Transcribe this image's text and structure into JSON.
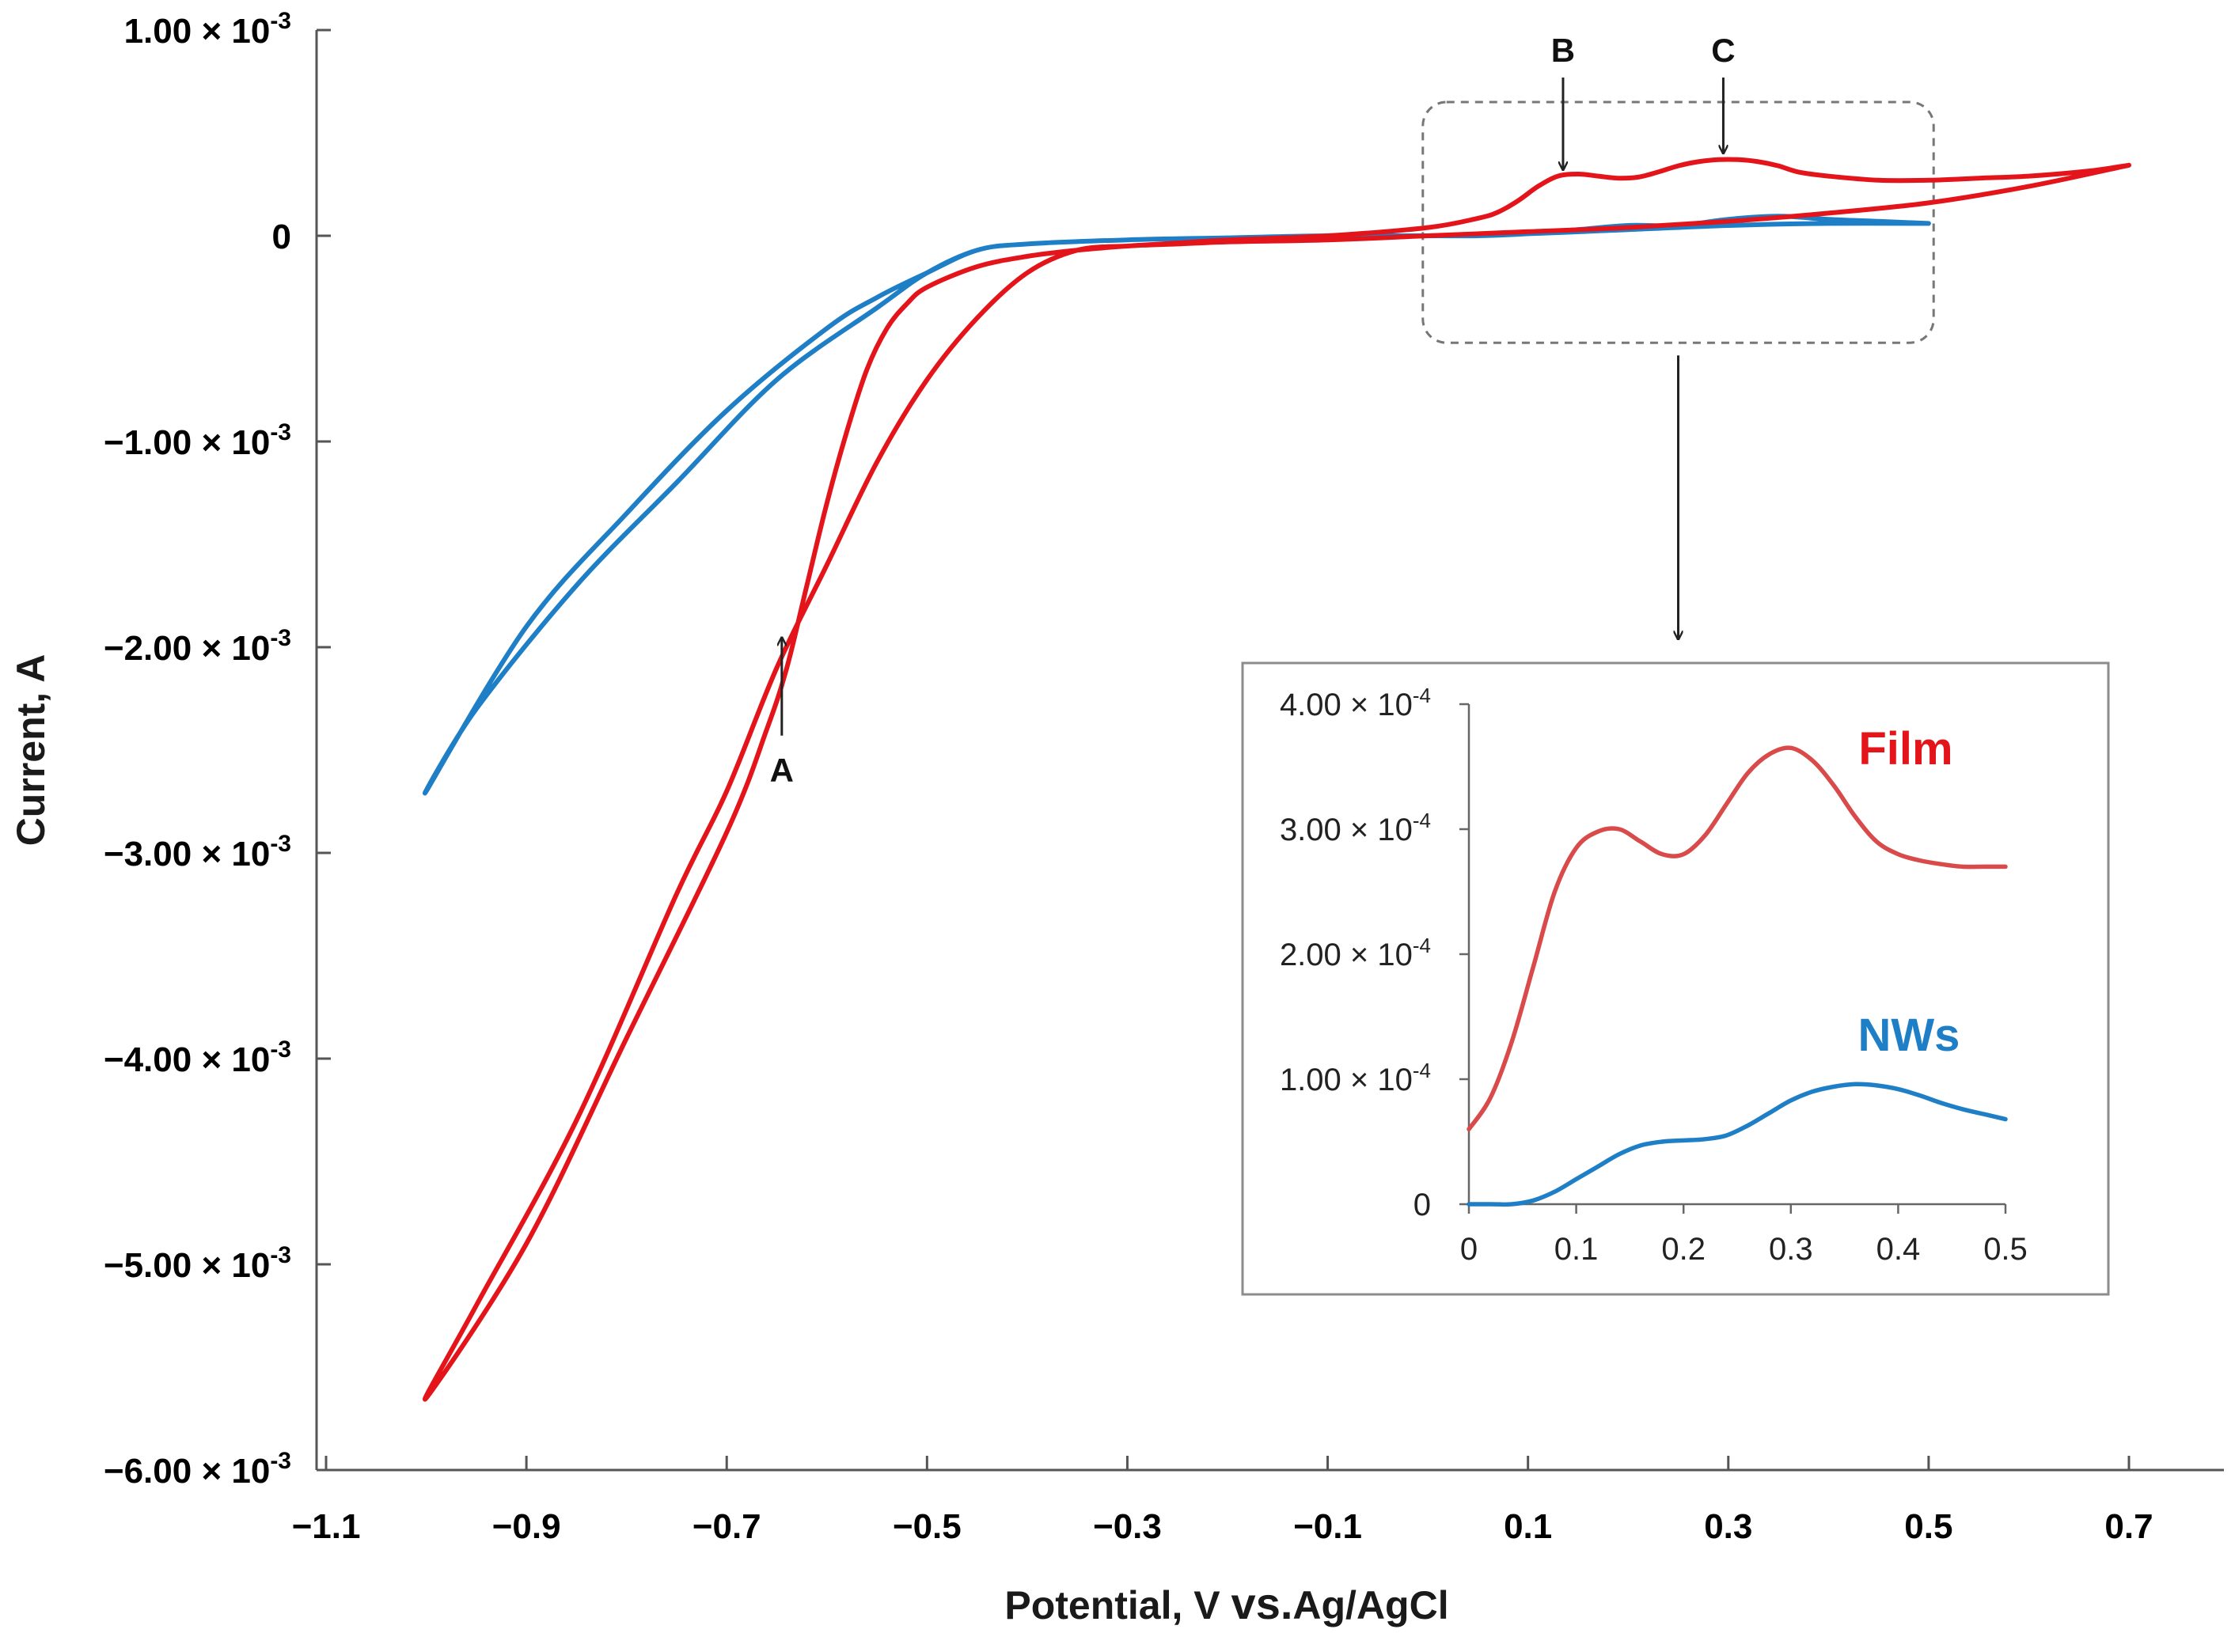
{
  "chart_data": {
    "type": "line",
    "title": "",
    "xlabel": "Potential, V vs.Ag/AgCl",
    "xlabel_parts": [
      "Potential, V ",
      "vs.",
      "Ag/AgCl"
    ],
    "ylabel": "Current, A",
    "xlim": [
      -1.1,
      0.8
    ],
    "ylim": [
      -0.006,
      0.001
    ],
    "xticks": [
      -1.1,
      -0.9,
      -0.7,
      -0.5,
      -0.3,
      -0.1,
      0.1,
      0.3,
      0.5,
      0.7
    ],
    "xtick_labels": [
      "−1.1",
      "−0.9",
      "−0.7",
      "−0.5",
      "−0.3",
      "−0.1",
      "0.1",
      "0.3",
      "0.5",
      "0.7"
    ],
    "yticks": [
      0.001,
      0,
      -0.001,
      -0.002,
      -0.003,
      -0.004,
      -0.005,
      -0.006
    ],
    "ytick_labels": [
      {
        "mant": "1.00 × 10",
        "exp": "-3"
      },
      {
        "mant": "0",
        "exp": ""
      },
      {
        "mant": "−1.00 × 10",
        "exp": "-3"
      },
      {
        "mant": "−2.00 × 10",
        "exp": "-3"
      },
      {
        "mant": "−3.00 × 10",
        "exp": "-3"
      },
      {
        "mant": "−4.00 × 10",
        "exp": "-3"
      },
      {
        "mant": "−5.00 × 10",
        "exp": "-3"
      },
      {
        "mant": "−6.00 × 10",
        "exp": "-3"
      }
    ],
    "grid": false,
    "series": [
      {
        "name": "Film",
        "color": "#e3151b",
        "x": [
          0.7,
          0.66,
          0.6,
          0.55,
          0.5,
          0.45,
          0.4,
          0.37,
          0.35,
          0.33,
          0.31,
          0.29,
          0.27,
          0.25,
          0.23,
          0.21,
          0.19,
          0.17,
          0.15,
          0.13,
          0.11,
          0.09,
          0.07,
          0.05,
          0.0,
          -0.1,
          -0.2,
          -0.25,
          -0.3,
          -0.35,
          -0.4,
          -0.45,
          -0.5,
          -0.52,
          -0.54,
          -0.56,
          -0.58,
          -0.6,
          -0.62,
          -0.64,
          -0.66,
          -0.7,
          -0.8,
          -0.9,
          -1.0,
          -0.95,
          -0.85,
          -0.75,
          -0.7,
          -0.65,
          -0.6,
          -0.55,
          -0.5,
          -0.45,
          -0.4,
          -0.35,
          -0.3,
          -0.28,
          -0.25,
          -0.2,
          -0.1,
          0.0,
          0.1,
          0.2,
          0.3,
          0.4,
          0.5,
          0.6,
          0.7
        ],
        "y": [
          0.000343,
          0.000315,
          0.00029,
          0.00028,
          0.00027,
          0.00027,
          0.00029,
          0.00031,
          0.00034,
          0.00036,
          0.00037,
          0.00037,
          0.00036,
          0.00034,
          0.00031,
          0.000285,
          0.00028,
          0.00029,
          0.0003,
          0.00029,
          0.00024,
          0.00017,
          0.000115,
          8.5e-05,
          4e-05,
          0.0,
          -2e-05,
          -3.5e-05,
          -5e-05,
          -7e-05,
          -0.0001,
          -0.00015,
          -0.00025,
          -0.00033,
          -0.00045,
          -0.00065,
          -0.00095,
          -0.0013,
          -0.0017,
          -0.0021,
          -0.0024,
          -0.0029,
          -0.0039,
          -0.0049,
          -0.00565,
          -0.0052,
          -0.0043,
          -0.0032,
          -0.0027,
          -0.0021,
          -0.0016,
          -0.0011,
          -0.0007,
          -0.0004,
          -0.00018,
          -7e-05,
          -5e-05,
          -4.5e-05,
          -4e-05,
          -3e-05,
          -2e-05,
          0.0,
          2e-05,
          4e-05,
          7e-05,
          0.00011,
          0.00016,
          0.00024,
          0.000343
        ]
      },
      {
        "name": "NWs",
        "color": "#1e7fc7",
        "x": [
          0.5,
          0.45,
          0.4,
          0.35,
          0.3,
          0.25,
          0.2,
          0.15,
          0.1,
          0.05,
          0.0,
          -0.1,
          -0.2,
          -0.3,
          -0.4,
          -0.45,
          -0.5,
          -0.55,
          -0.6,
          -0.7,
          -0.8,
          -0.9,
          -1.0,
          -0.95,
          -0.85,
          -0.75,
          -0.65,
          -0.55,
          -0.5,
          -0.45,
          -0.4,
          -0.3,
          -0.2,
          -0.1,
          0.0,
          0.1,
          0.2,
          0.3,
          0.4,
          0.5
        ],
        "y": [
          6e-05,
          7e-05,
          8e-05,
          9.5e-05,
          8e-05,
          5e-05,
          5e-05,
          3e-05,
          1e-05,
          0.0,
          0.0,
          0.0,
          -1e-05,
          -2e-05,
          -4e-05,
          -7e-05,
          -0.00018,
          -0.0003,
          -0.00045,
          -0.00085,
          -0.00135,
          -0.0019,
          -0.0027,
          -0.0023,
          -0.0017,
          -0.0012,
          -0.0007,
          -0.00035,
          -0.00018,
          -7e-05,
          -4e-05,
          -2e-05,
          -1e-05,
          0.0,
          0.0,
          1e-05,
          3e-05,
          5e-05,
          6e-05,
          6e-05
        ]
      }
    ],
    "annotations": [
      {
        "label": "A",
        "x": -0.645,
        "y": -0.00193,
        "arrow": "up"
      },
      {
        "label": "B",
        "x": 0.135,
        "y": 0.00029,
        "arrow": "down"
      },
      {
        "label": "C",
        "x": 0.295,
        "y": 0.00037,
        "arrow": "down"
      }
    ],
    "zoom_box": {
      "x0": -0.005,
      "x1": 0.505,
      "y0": -0.00052,
      "y1": 0.00065
    },
    "inset": {
      "type": "line",
      "xlim": [
        0,
        0.5
      ],
      "ylim": [
        0,
        0.0004
      ],
      "xticks": [
        0,
        0.1,
        0.2,
        0.3,
        0.4,
        0.5
      ],
      "xtick_labels": [
        "0",
        "0.1",
        "0.2",
        "0.3",
        "0.4",
        "0.5"
      ],
      "yticks": [
        0,
        0.0001,
        0.0002,
        0.0003,
        0.0004
      ],
      "ytick_labels": [
        {
          "mant": "0",
          "exp": ""
        },
        {
          "mant": "1.00 × 10",
          "exp": "-4"
        },
        {
          "mant": "2.00 × 10",
          "exp": "-4"
        },
        {
          "mant": "3.00 × 10",
          "exp": "-4"
        },
        {
          "mant": "4.00 × 10",
          "exp": "-4"
        }
      ],
      "series": [
        {
          "name": "Film",
          "color": "#d94a4a",
          "x": [
            0.0,
            0.02,
            0.04,
            0.06,
            0.08,
            0.1,
            0.12,
            0.14,
            0.16,
            0.18,
            0.2,
            0.22,
            0.24,
            0.26,
            0.28,
            0.3,
            0.32,
            0.34,
            0.36,
            0.38,
            0.4,
            0.42,
            0.44,
            0.46,
            0.48,
            0.5
          ],
          "y": [
            6e-05,
            8.5e-05,
            0.00013,
            0.00019,
            0.00025,
            0.000285,
            0.000298,
            0.0003,
            0.00029,
            0.00028,
            0.00028,
            0.000295,
            0.00032,
            0.000345,
            0.00036,
            0.000365,
            0.000355,
            0.000335,
            0.00031,
            0.00029,
            0.00028,
            0.000275,
            0.000272,
            0.00027,
            0.00027,
            0.00027
          ]
        },
        {
          "name": "NWs",
          "color": "#1e7fc7",
          "x": [
            0.0,
            0.02,
            0.04,
            0.06,
            0.08,
            0.1,
            0.12,
            0.14,
            0.16,
            0.18,
            0.2,
            0.22,
            0.24,
            0.26,
            0.28,
            0.3,
            0.32,
            0.34,
            0.36,
            0.38,
            0.4,
            0.42,
            0.44,
            0.46,
            0.48,
            0.5
          ],
          "y": [
            0.0,
            0.0,
            0.0,
            3e-06,
            1e-05,
            2e-05,
            3e-05,
            4e-05,
            4.7e-05,
            5e-05,
            5.1e-05,
            5.2e-05,
            5.5e-05,
            6.3e-05,
            7.3e-05,
            8.3e-05,
            9e-05,
            9.4e-05,
            9.6e-05,
            9.5e-05,
            9.2e-05,
            8.7e-05,
            8.1e-05,
            7.6e-05,
            7.2e-05,
            6.8e-05
          ]
        }
      ],
      "legend": [
        {
          "label": "Film",
          "color": "#e3151b"
        },
        {
          "label": "NWs",
          "color": "#1e7fc7"
        }
      ]
    }
  }
}
